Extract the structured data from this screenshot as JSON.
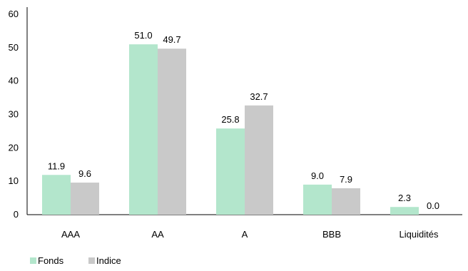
{
  "chart_data": {
    "type": "bar",
    "categories": [
      "AAA",
      "AA",
      "A",
      "BBB",
      "Liquidités"
    ],
    "series": [
      {
        "name": "Fonds",
        "color": "#b3e6cc",
        "values": [
          11.9,
          51.0,
          25.8,
          9.0,
          2.3
        ]
      },
      {
        "name": "Indice",
        "color": "#c9c9c9",
        "values": [
          9.6,
          49.7,
          32.7,
          7.9,
          0.0
        ]
      }
    ],
    "ylim": [
      0,
      60
    ],
    "yticks": [
      0,
      10,
      20,
      30,
      40,
      50,
      60
    ],
    "grid": false,
    "legend_position": "bottom-left",
    "data_labels": true,
    "label_decimals": 1
  }
}
